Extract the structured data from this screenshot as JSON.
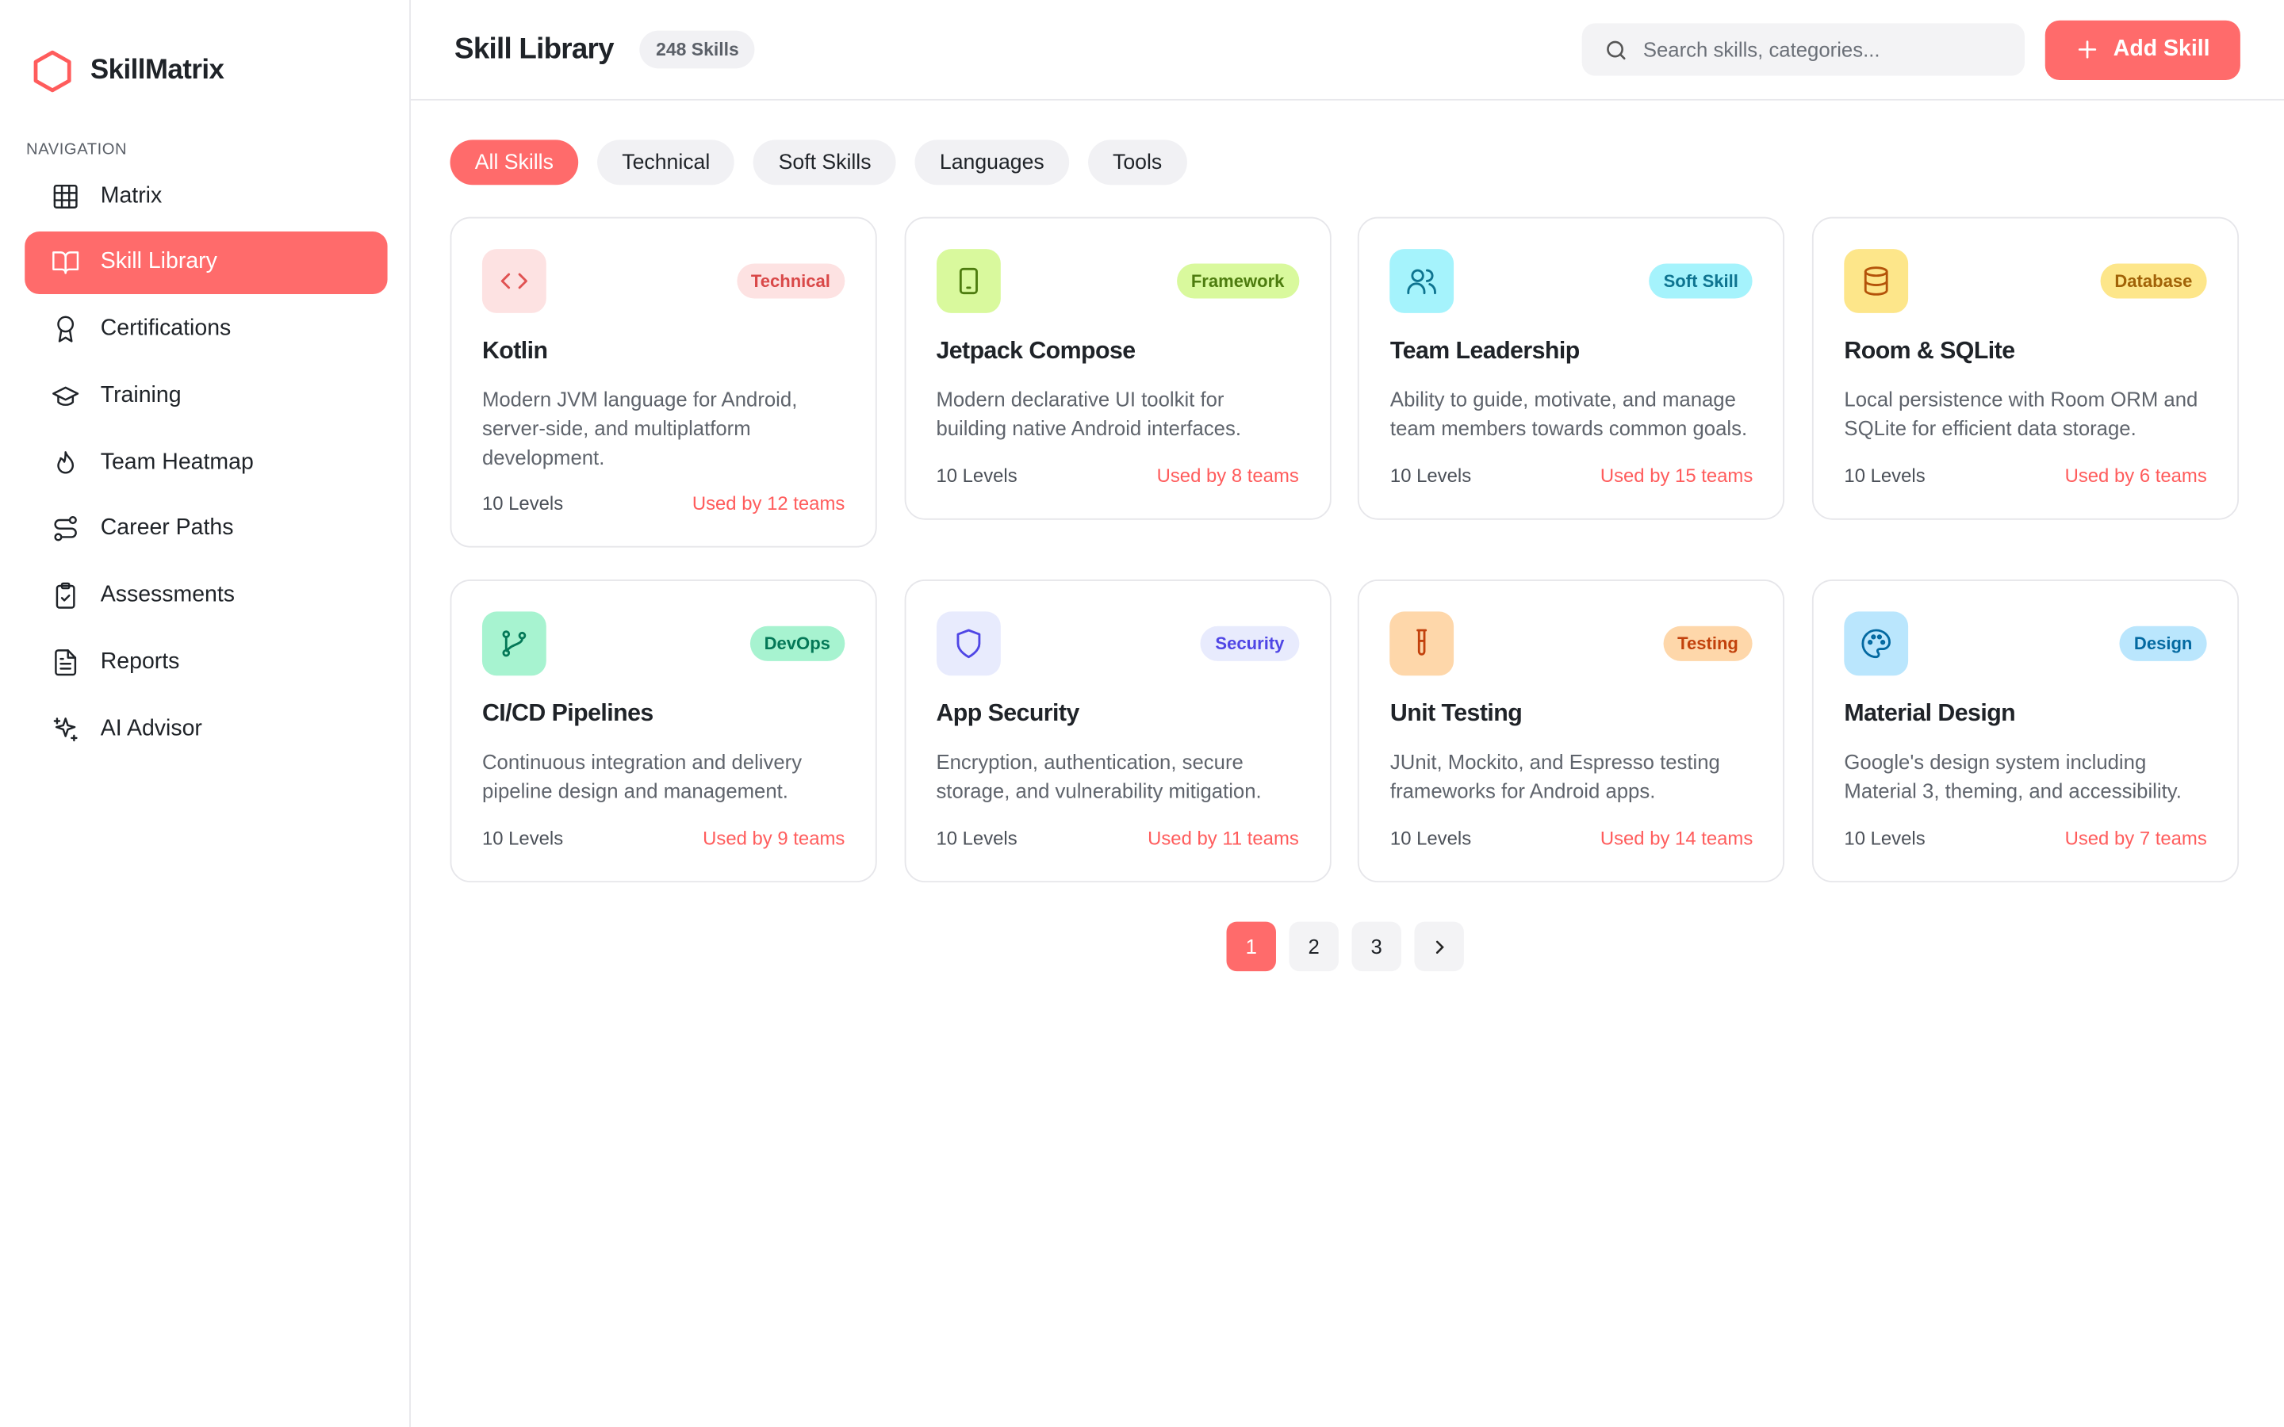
{
  "sidebar": {
    "brand": "SkillMatrix",
    "nav_label": "NAVIGATION",
    "nav": [
      "Matrix",
      "Skill Library",
      "Certifications",
      "Training",
      "Team Heatmap",
      "Career Paths",
      "Assessments",
      "Reports",
      "AI Advisor"
    ]
  },
  "header": {
    "title": "Skill Library",
    "count": "248 Skills",
    "search_placeholder": "Search skills, categories...",
    "add_button": "Add Skill"
  },
  "filters": [
    "All Skills",
    "Technical",
    "Soft Skills",
    "Languages",
    "Tools"
  ],
  "cards": [
    {
      "title": "Kotlin",
      "tag": "Technical",
      "description": "Modern JVM language for Android, server-side, and multiplatform development.",
      "levels": "10 Levels",
      "usage": "Used by 12 teams"
    },
    {
      "title": "Jetpack Compose",
      "tag": "Framework",
      "description": "Modern declarative UI toolkit for building native Android interfaces.",
      "levels": "10 Levels",
      "usage": "Used by 8 teams"
    },
    {
      "title": "Team Leadership",
      "tag": "Soft Skill",
      "description": "Ability to guide, motivate, and manage team members towards common goals.",
      "levels": "10 Levels",
      "usage": "Used by 15 teams"
    },
    {
      "title": "Room & SQLite",
      "tag": "Database",
      "description": "Local persistence with Room ORM and SQLite for efficient data storage.",
      "levels": "10 Levels",
      "usage": "Used by 6 teams"
    },
    {
      "title": "CI/CD Pipelines",
      "tag": "DevOps",
      "description": "Continuous integration and delivery pipeline design and management.",
      "levels": "10 Levels",
      "usage": "Used by 9 teams"
    },
    {
      "title": "App Security",
      "tag": "Security",
      "description": "Encryption, authentication, secure storage, and vulnerability mitigation.",
      "levels": "10 Levels",
      "usage": "Used by 11 teams"
    },
    {
      "title": "Unit Testing",
      "tag": "Testing",
      "description": "JUnit, Mockito, and Espresso testing frameworks for Android apps.",
      "levels": "10 Levels",
      "usage": "Used by 14 teams"
    },
    {
      "title": "Material Design",
      "tag": "Design",
      "description": "Google's design system including Material 3, theming, and accessibility.",
      "levels": "10 Levels",
      "usage": "Used by 7 teams"
    }
  ],
  "pagination": [
    "1",
    "2",
    "3"
  ]
}
